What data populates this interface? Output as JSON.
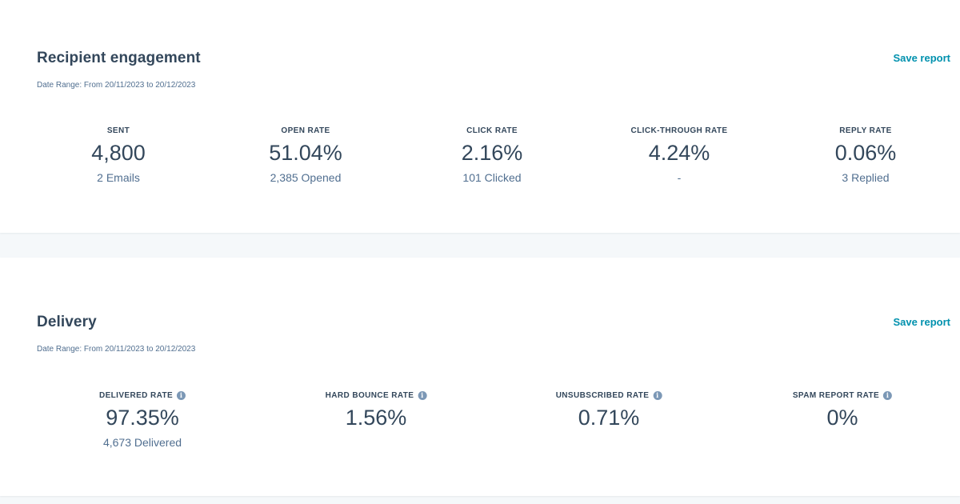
{
  "engagement": {
    "title": "Recipient engagement",
    "save_label": "Save report",
    "date_range": "Date Range: From 20/11/2023 to 20/12/2023",
    "metrics": [
      {
        "label": "SENT",
        "value": "4,800",
        "sub": "2 Emails"
      },
      {
        "label": "OPEN RATE",
        "value": "51.04%",
        "sub": "2,385 Opened"
      },
      {
        "label": "CLICK RATE",
        "value": "2.16%",
        "sub": "101 Clicked"
      },
      {
        "label": "CLICK-THROUGH RATE",
        "value": "4.24%",
        "sub": "-"
      },
      {
        "label": "REPLY RATE",
        "value": "0.06%",
        "sub": "3 Replied"
      }
    ]
  },
  "delivery": {
    "title": "Delivery",
    "save_label": "Save report",
    "date_range": "Date Range: From 20/11/2023 to 20/12/2023",
    "metrics": [
      {
        "label": "DELIVERED RATE",
        "value": "97.35%",
        "sub": "4,673 Delivered",
        "icon": "info-icon"
      },
      {
        "label": "HARD BOUNCE RATE",
        "value": "1.56%",
        "icon": "info-icon"
      },
      {
        "label": "UNSUBSCRIBED RATE",
        "value": "0.71%",
        "icon": "info-icon"
      },
      {
        "label": "SPAM REPORT RATE",
        "value": "0%",
        "icon": "info-icon"
      }
    ]
  },
  "colors": {
    "accent_link": "#0091ae",
    "text_primary": "#33475b",
    "text_secondary": "#516f90",
    "page_background": "#f5f8fa"
  }
}
